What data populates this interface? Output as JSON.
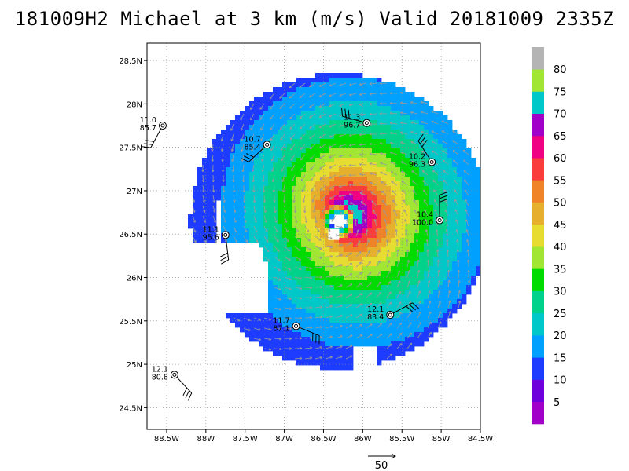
{
  "title": "181009H2 Michael at 3 km (m/s) Valid 20181009  2335Z",
  "chart_data": {
    "type": "heatmap",
    "title": "181009H2 Michael at 3 km (m/s) Valid 20181009  2335Z",
    "storm_center": {
      "lon": -86.3,
      "lat": 26.65
    },
    "xlim": [
      -88.75,
      -84.5
    ],
    "ylim": [
      24.25,
      28.7
    ],
    "x_ticks": [
      {
        "lon": -88.5,
        "label": "88.5W"
      },
      {
        "lon": -88.0,
        "label": "88W"
      },
      {
        "lon": -87.5,
        "label": "87.5W"
      },
      {
        "lon": -87.0,
        "label": "87W"
      },
      {
        "lon": -86.5,
        "label": "86.5W"
      },
      {
        "lon": -86.0,
        "label": "86W"
      },
      {
        "lon": -85.5,
        "label": "85.5W"
      },
      {
        "lon": -85.0,
        "label": "85W"
      },
      {
        "lon": -84.5,
        "label": "84.5W"
      }
    ],
    "y_ticks": [
      {
        "lat": 24.5,
        "label": "24.5N"
      },
      {
        "lat": 25.0,
        "label": "25N"
      },
      {
        "lat": 25.5,
        "label": "25.5N"
      },
      {
        "lat": 26.0,
        "label": "26N"
      },
      {
        "lat": 26.5,
        "label": "26.5N"
      },
      {
        "lat": 27.0,
        "label": "27N"
      },
      {
        "lat": 27.5,
        "label": "27.5N"
      },
      {
        "lat": 28.0,
        "label": "28N"
      },
      {
        "lat": 28.5,
        "label": "28.5N"
      }
    ],
    "grid": true,
    "colorbar": {
      "levels": [
        0,
        5,
        10,
        15,
        20,
        25,
        30,
        35,
        40,
        45,
        50,
        55,
        60,
        65,
        70,
        75,
        80,
        85
      ],
      "labels": [
        "5",
        "10",
        "15",
        "20",
        "25",
        "30",
        "35",
        "40",
        "45",
        "50",
        "55",
        "60",
        "65",
        "70",
        "75",
        "80"
      ],
      "colors": [
        "#a000c8",
        "#6e00dc",
        "#1e3cff",
        "#00a0ff",
        "#00c8c8",
        "#00d28c",
        "#00dc00",
        "#a0e632",
        "#e6dc32",
        "#e6af2d",
        "#f08228",
        "#fa3c3c",
        "#f00082",
        "#a000c8",
        "#00c8c8",
        "#a0e632",
        "#b4b4b4"
      ]
    },
    "observations": [
      {
        "lon": -88.55,
        "lat": 27.75,
        "top": "11.0",
        "bottom": "85.7"
      },
      {
        "lon": -87.22,
        "lat": 27.53,
        "top": "10.7",
        "bottom": "85.4"
      },
      {
        "lon": -85.95,
        "lat": 27.78,
        "top": "11.3",
        "bottom": "96.7"
      },
      {
        "lon": -85.12,
        "lat": 27.33,
        "top": "10.2",
        "bottom": "96.3"
      },
      {
        "lon": -85.02,
        "lat": 26.66,
        "top": "10.4",
        "bottom": "100.0"
      },
      {
        "lon": -87.75,
        "lat": 26.49,
        "top": "11.1",
        "bottom": "95.6"
      },
      {
        "lon": -86.85,
        "lat": 25.44,
        "top": "11.7",
        "bottom": "87.1"
      },
      {
        "lon": -85.65,
        "lat": 25.57,
        "top": "12.1",
        "bottom": "83.4"
      },
      {
        "lon": -88.4,
        "lat": 24.88,
        "top": "12.1",
        "bottom": "80.8"
      }
    ],
    "reference_vector": {
      "label": "50"
    }
  }
}
